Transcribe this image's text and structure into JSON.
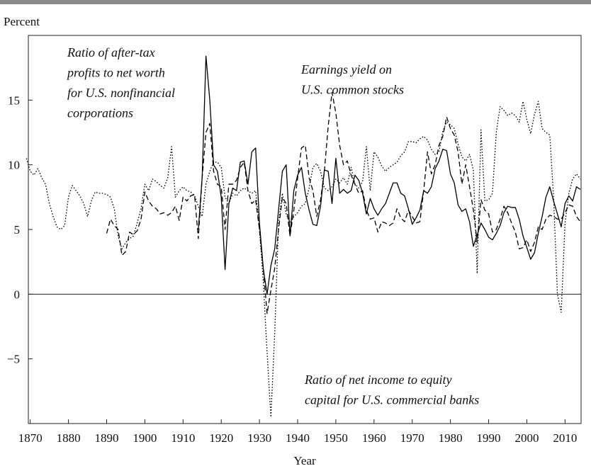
{
  "chart_data": {
    "type": "line",
    "y_axis_label": "Percent",
    "x_axis_label": "Year",
    "annotations": [
      [
        "Ratio of after-tax",
        "profits to net worth",
        "for U.S. nonfinancial",
        "corporations"
      ],
      [
        "Earnings yield on",
        "U.S. common stocks"
      ],
      [
        "Ratio of net income to equity",
        "capital for U.S. commercial banks"
      ]
    ],
    "x": [
      1869,
      1870,
      1871,
      1872,
      1873,
      1874,
      1875,
      1876,
      1877,
      1878,
      1879,
      1880,
      1881,
      1882,
      1883,
      1884,
      1885,
      1886,
      1887,
      1888,
      1889,
      1890,
      1891,
      1892,
      1893,
      1894,
      1895,
      1896,
      1897,
      1898,
      1899,
      1900,
      1901,
      1902,
      1903,
      1904,
      1905,
      1906,
      1907,
      1908,
      1909,
      1910,
      1911,
      1912,
      1913,
      1914,
      1915,
      1916,
      1917,
      1918,
      1919,
      1920,
      1921,
      1922,
      1923,
      1924,
      1925,
      1926,
      1927,
      1928,
      1929,
      1930,
      1931,
      1932,
      1933,
      1934,
      1935,
      1936,
      1937,
      1938,
      1939,
      1940,
      1941,
      1942,
      1943,
      1944,
      1945,
      1946,
      1947,
      1948,
      1949,
      1950,
      1951,
      1952,
      1953,
      1954,
      1955,
      1956,
      1957,
      1958,
      1959,
      1960,
      1961,
      1962,
      1963,
      1964,
      1965,
      1966,
      1967,
      1968,
      1969,
      1970,
      1971,
      1972,
      1973,
      1974,
      1975,
      1976,
      1977,
      1978,
      1979,
      1980,
      1981,
      1982,
      1983,
      1984,
      1985,
      1986,
      1987,
      1988,
      1989,
      1990,
      1991,
      1992,
      1993,
      1994,
      1995,
      1996,
      1997,
      1998,
      1999,
      2000,
      2001,
      2002,
      2003,
      2004,
      2005,
      2006,
      2007,
      2008,
      2009,
      2010,
      2011,
      2012,
      2013,
      2014
    ],
    "series": [
      {
        "color": "#000000",
        "line_style": "dotted",
        "values": [
          10.5,
          9.5,
          9.2,
          9.7,
          9.0,
          8.5,
          7.0,
          6.0,
          5.2,
          5.0,
          5.3,
          7.5,
          8.4,
          8.0,
          7.6,
          7.0,
          6.0,
          7.2,
          7.9,
          7.8,
          7.8,
          7.7,
          7.5,
          6.6,
          4.5,
          3.5,
          4.0,
          4.3,
          4.5,
          5.5,
          6.6,
          8.5,
          8.0,
          8.9,
          8.7,
          8.4,
          8.2,
          9.0,
          11.4,
          7.5,
          8.0,
          8.3,
          8.0,
          7.9,
          7.6,
          6.8,
          6.0,
          8.5,
          9.5,
          10.2,
          10.2,
          9.8,
          7.5,
          7.0,
          7.8,
          7.6,
          8.0,
          8.2,
          8.0,
          7.8,
          8.0,
          5.0,
          1.0,
          -4.5,
          -9.5,
          -3.0,
          5.5,
          7.8,
          6.2,
          5.5,
          6.0,
          6.3,
          6.8,
          7.0,
          8.2,
          9.8,
          10.1,
          9.5,
          8.2,
          8.0,
          8.3,
          8.9,
          8.6,
          9.0,
          8.5,
          9.8,
          8.5,
          8.2,
          8.7,
          11.4,
          8.0,
          11.0,
          10.6,
          9.9,
          9.5,
          9.8,
          10.0,
          10.2,
          10.7,
          11.0,
          11.8,
          11.8,
          11.7,
          12.0,
          12.2,
          11.9,
          11.2,
          10.8,
          11.0,
          12.6,
          13.3,
          13.1,
          12.8,
          11.6,
          10.6,
          10.3,
          10.8,
          9.6,
          1.6,
          12.7,
          7.2,
          7.3,
          7.8,
          12.5,
          14.5,
          14.2,
          13.8,
          14.0,
          13.8,
          13.3,
          14.9,
          13.5,
          12.4,
          13.9,
          14.9,
          12.8,
          12.5,
          12.3,
          7.5,
          0.0,
          -1.4,
          5.5,
          7.8,
          8.9,
          9.3,
          8.9
        ]
      },
      {
        "color": "#000000",
        "line_style": "dashed",
        "values": [
          null,
          null,
          null,
          null,
          null,
          null,
          null,
          null,
          null,
          null,
          null,
          null,
          null,
          null,
          null,
          null,
          null,
          null,
          null,
          null,
          null,
          4.7,
          5.8,
          5.3,
          5.0,
          3.0,
          3.3,
          4.8,
          4.6,
          4.9,
          5.8,
          7.9,
          7.2,
          6.8,
          6.6,
          6.2,
          6.3,
          6.1,
          6.3,
          6.8,
          5.7,
          7.5,
          7.2,
          7.6,
          7.7,
          4.3,
          9.0,
          12.5,
          13.2,
          9.5,
          8.5,
          8.3,
          5.0,
          8.5,
          8.5,
          8.8,
          9.8,
          10.2,
          8.0,
          7.0,
          7.3,
          5.0,
          2.0,
          -1.5,
          0.3,
          2.0,
          5.0,
          7.5,
          7.0,
          4.5,
          6.5,
          9.0,
          11.3,
          11.5,
          9.0,
          8.0,
          6.0,
          7.3,
          9.5,
          13.0,
          15.6,
          14.0,
          11.5,
          10.0,
          10.3,
          9.2,
          8.5,
          7.8,
          8.0,
          6.5,
          5.8,
          5.9,
          4.8,
          5.6,
          5.5,
          5.3,
          5.5,
          6.6,
          5.9,
          5.6,
          6.5,
          6.0,
          5.5,
          5.6,
          8.0,
          11.0,
          9.3,
          10.0,
          11.5,
          12.2,
          13.7,
          12.8,
          12.3,
          11.0,
          8.5,
          10.0,
          8.3,
          6.5,
          4.0,
          7.3,
          6.5,
          6.2,
          4.8,
          5.0,
          5.8,
          6.8,
          6.3,
          5.5,
          4.8,
          3.5,
          3.6,
          4.2,
          3.3,
          4.0,
          5.2,
          5.0,
          5.8,
          6.1,
          6.0,
          5.8,
          5.8,
          6.3,
          6.9,
          6.8,
          6.0,
          5.6
        ]
      },
      {
        "color": "#000000",
        "line_style": "solid",
        "values": [
          null,
          null,
          null,
          null,
          null,
          null,
          null,
          null,
          null,
          null,
          null,
          null,
          null,
          null,
          null,
          null,
          null,
          null,
          null,
          null,
          null,
          null,
          null,
          null,
          null,
          null,
          null,
          null,
          null,
          null,
          null,
          null,
          null,
          null,
          null,
          null,
          null,
          null,
          null,
          null,
          null,
          null,
          null,
          null,
          null,
          5.0,
          9.0,
          18.4,
          15.0,
          10.0,
          9.5,
          7.5,
          1.9,
          7.0,
          8.2,
          8.0,
          10.2,
          10.3,
          8.5,
          11.0,
          11.3,
          5.5,
          2.0,
          0.0,
          2.2,
          3.5,
          6.5,
          9.5,
          10.0,
          4.5,
          8.0,
          9.2,
          9.8,
          7.8,
          6.5,
          5.4,
          5.3,
          6.8,
          9.6,
          9.5,
          7.0,
          10.5,
          7.8,
          8.1,
          7.8,
          8.0,
          9.2,
          8.8,
          7.8,
          6.2,
          7.4,
          6.6,
          6.1,
          6.6,
          7.0,
          7.8,
          8.6,
          8.6,
          7.8,
          7.6,
          6.6,
          5.4,
          5.9,
          6.5,
          8.0,
          7.8,
          8.3,
          9.7,
          10.3,
          11.2,
          11.1,
          9.3,
          8.6,
          6.9,
          6.4,
          6.6,
          5.6,
          3.7,
          4.6,
          5.5,
          5.0,
          4.4,
          4.2,
          4.7,
          5.3,
          6.3,
          6.8,
          6.7,
          6.7,
          5.8,
          4.5,
          3.6,
          2.7,
          3.2,
          4.7,
          6.0,
          7.5,
          8.3,
          7.2,
          6.2,
          5.2,
          7.0,
          7.6,
          7.2,
          8.3,
          8.1
        ]
      }
    ],
    "xlim": [
      1869.5,
      2014.2
    ],
    "xticks": [
      1870,
      1880,
      1890,
      1900,
      1910,
      1920,
      1930,
      1940,
      1950,
      1960,
      1970,
      1980,
      1990,
      2000,
      2010
    ],
    "ylim": [
      -10,
      20
    ],
    "yticks": [
      {
        "value": -5,
        "label": "−5"
      },
      0,
      5,
      10,
      15
    ],
    "zero_line": true,
    "grid": false
  }
}
